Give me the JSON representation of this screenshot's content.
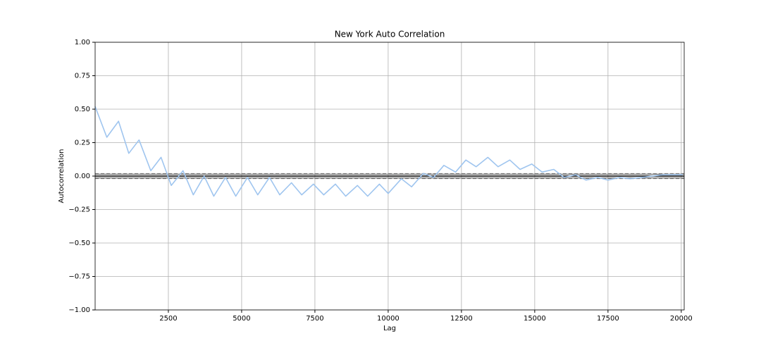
{
  "chart_data": {
    "type": "line",
    "title": "New York Auto Correlation",
    "x_label": "Lag",
    "y_label": "Autocorrelation",
    "x": [
      1,
      400,
      800,
      1150,
      1500,
      1900,
      2250,
      2600,
      3000,
      3350,
      3720,
      4050,
      4450,
      4800,
      5200,
      5550,
      5950,
      6300,
      6700,
      7050,
      7450,
      7800,
      8200,
      8550,
      8950,
      9300,
      9700,
      10000,
      10450,
      10800,
      11200,
      11550,
      11900,
      12300,
      12650,
      13000,
      13400,
      13750,
      14150,
      14500,
      14900,
      15250,
      15650,
      16000,
      16400,
      16750,
      17150,
      17500,
      17900,
      18250,
      18650,
      19000,
      19400,
      19800,
      20050
    ],
    "series": [
      {
        "color": "#9fc5ef",
        "values": [
          0.52,
          0.29,
          0.41,
          0.17,
          0.27,
          0.04,
          0.14,
          -0.07,
          0.04,
          -0.14,
          0.0,
          -0.15,
          -0.01,
          -0.15,
          -0.01,
          -0.14,
          -0.01,
          -0.14,
          -0.05,
          -0.14,
          -0.06,
          -0.14,
          -0.06,
          -0.15,
          -0.07,
          -0.15,
          -0.06,
          -0.13,
          -0.02,
          -0.08,
          0.02,
          -0.01,
          0.08,
          0.03,
          0.12,
          0.07,
          0.14,
          0.07,
          0.12,
          0.05,
          0.09,
          0.03,
          0.05,
          -0.01,
          0.01,
          -0.03,
          -0.01,
          -0.03,
          -0.01,
          -0.02,
          -0.01,
          0.0,
          0.01,
          0.01,
          0.01
        ]
      }
    ],
    "hlines": [
      {
        "value": 0.0182,
        "style": "dashed",
        "color": "#808080"
      },
      {
        "value": 0.0138,
        "style": "solid",
        "color": "#808080"
      },
      {
        "value": 0,
        "style": "solid",
        "color": "#000000"
      },
      {
        "value": -0.0138,
        "style": "solid",
        "color": "#808080"
      },
      {
        "value": -0.0182,
        "style": "dashed",
        "color": "#808080"
      }
    ],
    "xlim": [
      1,
      20100
    ],
    "ylim": [
      -1,
      1
    ],
    "xticks": [
      2500,
      5000,
      7500,
      10000,
      12500,
      15000,
      17500,
      20000
    ],
    "yticks": [
      {
        "value": 1,
        "label": "1.00"
      },
      {
        "value": 0.75,
        "label": "0.75"
      },
      {
        "value": 0.5,
        "label": "0.50"
      },
      {
        "value": 0.25,
        "label": "0.25"
      },
      {
        "value": 0,
        "label": "0.00"
      },
      {
        "value": -0.25,
        "label": "−0.25"
      },
      {
        "value": -0.5,
        "label": "−0.50"
      },
      {
        "value": -0.75,
        "label": "−0.75"
      },
      {
        "value": -1,
        "label": "−1.00"
      }
    ],
    "grid": true
  }
}
